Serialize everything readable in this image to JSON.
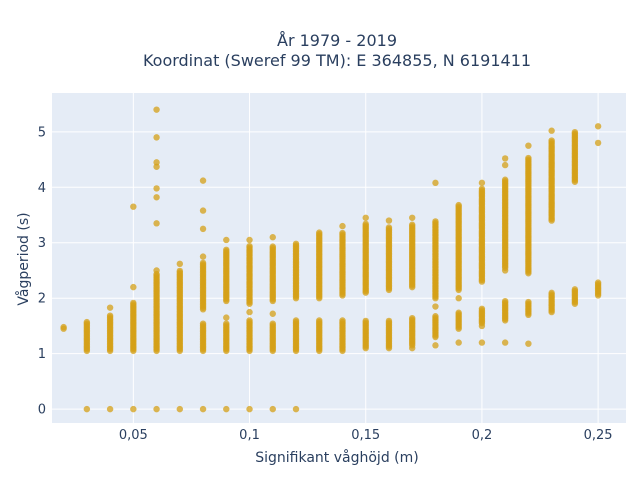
{
  "chart_data": {
    "type": "scatter",
    "title": "År 1979 - 2019",
    "subtitle": "Koordinat (Sweref 99 TM): E 364855, N 6191411",
    "xlabel": "Signifikant våghöjd (m)",
    "ylabel": "Vågperiod (s)",
    "xlim": [
      0.015,
      0.262
    ],
    "ylim": [
      -0.25,
      5.7
    ],
    "x_ticks": [
      0.05,
      0.1,
      0.15,
      0.2,
      0.25
    ],
    "x_tick_labels": [
      "0,05",
      "0,1",
      "0,15",
      "0,2",
      "0,25"
    ],
    "y_ticks": [
      0,
      1,
      2,
      3,
      4,
      5
    ],
    "y_tick_labels": [
      "0",
      "1",
      "2",
      "3",
      "4",
      "5"
    ],
    "grid": true,
    "legend": "none",
    "marker_color": "#d4a017",
    "plot_background": "#e5ecf6",
    "columns": [
      {
        "x": 0.02,
        "ranges": [
          [
            1.45,
            1.5
          ]
        ],
        "points": []
      },
      {
        "x": 0.03,
        "ranges": [
          [
            1.05,
            1.58
          ]
        ],
        "points": [
          0
        ]
      },
      {
        "x": 0.04,
        "ranges": [
          [
            1.05,
            1.7
          ]
        ],
        "points": [
          0,
          1.83
        ]
      },
      {
        "x": 0.05,
        "ranges": [
          [
            1.05,
            1.92
          ]
        ],
        "points": [
          0,
          2.2,
          3.65
        ]
      },
      {
        "x": 0.06,
        "ranges": [
          [
            1.05,
            2.45
          ]
        ],
        "points": [
          0,
          2.5,
          3.35,
          3.82,
          3.98,
          4.37,
          4.45,
          4.9,
          5.4
        ]
      },
      {
        "x": 0.07,
        "ranges": [
          [
            1.05,
            2.5
          ]
        ],
        "points": [
          0,
          2.62
        ]
      },
      {
        "x": 0.08,
        "ranges": [
          [
            1.05,
            1.55
          ],
          [
            1.8,
            2.65
          ]
        ],
        "points": [
          0,
          2.75,
          3.25,
          3.58,
          4.12
        ]
      },
      {
        "x": 0.09,
        "ranges": [
          [
            1.05,
            1.55
          ],
          [
            1.95,
            2.9
          ]
        ],
        "points": [
          0,
          1.65,
          3.05
        ]
      },
      {
        "x": 0.1,
        "ranges": [
          [
            1.05,
            1.6
          ],
          [
            1.9,
            2.95
          ]
        ],
        "points": [
          0,
          1.75,
          3.05
        ]
      },
      {
        "x": 0.11,
        "ranges": [
          [
            1.05,
            1.55
          ],
          [
            1.95,
            2.95
          ]
        ],
        "points": [
          0,
          1.72,
          3.1
        ]
      },
      {
        "x": 0.12,
        "ranges": [
          [
            1.05,
            1.6
          ],
          [
            2.0,
            3.0
          ]
        ],
        "points": [
          0
        ]
      },
      {
        "x": 0.13,
        "ranges": [
          [
            1.05,
            1.6
          ],
          [
            2.0,
            3.2
          ]
        ],
        "points": []
      },
      {
        "x": 0.14,
        "ranges": [
          [
            1.05,
            1.6
          ],
          [
            2.05,
            3.2
          ]
        ],
        "points": [
          3.3
        ]
      },
      {
        "x": 0.15,
        "ranges": [
          [
            1.1,
            1.6
          ],
          [
            2.1,
            3.35
          ]
        ],
        "points": [
          3.45
        ]
      },
      {
        "x": 0.16,
        "ranges": [
          [
            1.1,
            1.6
          ],
          [
            2.15,
            3.3
          ]
        ],
        "points": [
          3.4
        ]
      },
      {
        "x": 0.17,
        "ranges": [
          [
            1.15,
            1.65
          ],
          [
            2.2,
            3.35
          ]
        ],
        "points": [
          1.1,
          3.45
        ]
      },
      {
        "x": 0.18,
        "ranges": [
          [
            1.3,
            1.7
          ],
          [
            2.0,
            3.4
          ]
        ],
        "points": [
          1.15,
          1.85,
          4.08
        ]
      },
      {
        "x": 0.19,
        "ranges": [
          [
            1.45,
            1.75
          ],
          [
            2.15,
            3.7
          ]
        ],
        "points": [
          1.2,
          2.0
        ]
      },
      {
        "x": 0.2,
        "ranges": [
          [
            1.55,
            1.82
          ],
          [
            2.3,
            4.0
          ]
        ],
        "points": [
          1.2,
          1.5,
          4.08
        ]
      },
      {
        "x": 0.21,
        "ranges": [
          [
            1.6,
            1.95
          ],
          [
            2.55,
            4.15
          ]
        ],
        "points": [
          1.2,
          2.5,
          4.4,
          4.52
        ]
      },
      {
        "x": 0.22,
        "ranges": [
          [
            1.7,
            1.95
          ],
          [
            2.45,
            4.55
          ]
        ],
        "points": [
          1.18,
          4.75
        ]
      },
      {
        "x": 0.23,
        "ranges": [
          [
            1.75,
            2.12
          ],
          [
            3.4,
            4.85
          ]
        ],
        "points": [
          5.02
        ]
      },
      {
        "x": 0.24,
        "ranges": [
          [
            1.9,
            2.18
          ],
          [
            4.1,
            5.0
          ]
        ],
        "points": []
      },
      {
        "x": 0.25,
        "ranges": [
          [
            2.05,
            2.3
          ]
        ],
        "points": [
          4.8,
          5.1
        ]
      }
    ]
  }
}
